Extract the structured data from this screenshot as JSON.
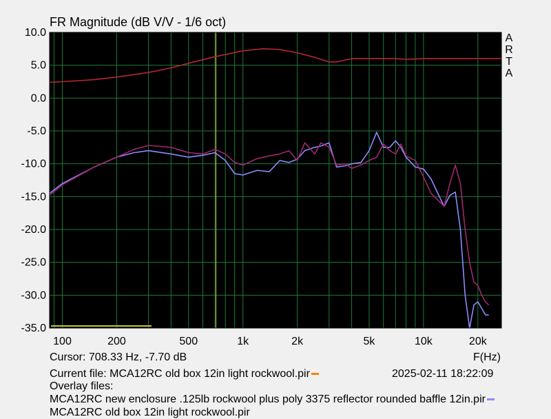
{
  "chart_data": {
    "type": "line",
    "title": "FR Magnitude (dB V/V - 1/6 oct)",
    "xlabel": "F(Hz)",
    "x_scale": "log",
    "xlim": [
      85,
      27000
    ],
    "ylim": [
      -35,
      10
    ],
    "grid": true,
    "x_ticks": [
      100,
      200,
      500,
      1000,
      2000,
      5000,
      10000,
      20000
    ],
    "x_tick_labels": [
      "100",
      "200",
      "500",
      "1k",
      "2k",
      "5k",
      "10k",
      "20k"
    ],
    "y_ticks": [
      10,
      5,
      0,
      -5,
      -10,
      -15,
      -20,
      -25,
      -30,
      -35
    ],
    "y_tick_labels": [
      "10.0",
      "5.0",
      "0.0",
      "-5.0",
      "-10.0",
      "-15.0",
      "-20.0",
      "-25.0",
      "-30.0",
      "-35.0"
    ],
    "cursor": {
      "x": 708.33,
      "y": -7.7
    },
    "series": [
      {
        "color": "#b42832",
        "x": [
          85,
          100,
          150,
          200,
          300,
          400,
          500,
          700,
          1000,
          1300,
          1600,
          2000,
          2500,
          3000,
          3300,
          4000,
          5000,
          7000,
          8000,
          10000,
          15000,
          20000,
          27000
        ],
        "y": [
          2.4,
          2.5,
          2.8,
          3.2,
          3.9,
          4.6,
          5.3,
          6.3,
          7.2,
          7.5,
          7.4,
          6.9,
          6.2,
          5.5,
          5.5,
          6.0,
          6.0,
          6.0,
          5.9,
          6.0,
          6.0,
          6.0,
          6.0
        ]
      },
      {
        "color": "#8c8cff",
        "x": [
          85,
          100,
          150,
          200,
          250,
          300,
          400,
          500,
          600,
          700,
          800,
          900,
          1000,
          1200,
          1400,
          1600,
          1800,
          2000,
          2200,
          2500,
          2700,
          3000,
          3300,
          3700,
          4000,
          4500,
          5000,
          5500,
          6000,
          6500,
          7000,
          7500,
          8000,
          9000,
          10000,
          11000,
          12000,
          13000,
          14000,
          15000,
          16000,
          17000,
          18000,
          19000,
          20000,
          21000,
          22000,
          23000
        ],
        "y": [
          -14.5,
          -13.0,
          -10.5,
          -9.0,
          -8.3,
          -8.0,
          -8.5,
          -9.0,
          -8.7,
          -8.3,
          -9.5,
          -11.5,
          -11.7,
          -11.0,
          -11.2,
          -9.5,
          -9.8,
          -9.3,
          -8.0,
          -7.5,
          -7.3,
          -6.8,
          -10.5,
          -10.3,
          -10.0,
          -9.8,
          -8.0,
          -5.2,
          -7.5,
          -7.5,
          -6.5,
          -7.5,
          -9.0,
          -10.5,
          -10.8,
          -12.3,
          -14.5,
          -16.5,
          -14.8,
          -14.3,
          -20.0,
          -30.0,
          -35.5,
          -31.5,
          -31.0,
          -32.0,
          -33.0,
          -33.0
        ]
      },
      {
        "color": "#a0286e",
        "x": [
          85,
          100,
          150,
          200,
          250,
          300,
          400,
          500,
          600,
          700,
          800,
          900,
          1000,
          1200,
          1400,
          1600,
          1800,
          2000,
          2200,
          2500,
          2700,
          3000,
          3300,
          3700,
          4000,
          4500,
          5000,
          5500,
          6000,
          6500,
          7000,
          7500,
          8000,
          9000,
          10000,
          11000,
          12000,
          13000,
          14000,
          15000,
          16000,
          17000,
          18000,
          19000,
          20000,
          21000,
          22000,
          23000
        ],
        "y": [
          -14.8,
          -13.2,
          -10.5,
          -9.0,
          -7.8,
          -7.2,
          -7.5,
          -8.3,
          -8.5,
          -7.8,
          -8.5,
          -9.8,
          -10.2,
          -9.2,
          -8.8,
          -8.5,
          -8.0,
          -9.5,
          -6.8,
          -8.5,
          -6.8,
          -7.5,
          -10.2,
          -10.0,
          -10.7,
          -10.2,
          -9.5,
          -9.0,
          -7.0,
          -8.0,
          -8.5,
          -7.0,
          -8.8,
          -9.5,
          -12.0,
          -14.5,
          -15.5,
          -16.5,
          -13.0,
          -10.2,
          -13.0,
          -20.0,
          -25.0,
          -28.0,
          -28.5,
          -30.0,
          -31.0,
          -31.5
        ]
      }
    ]
  },
  "labels": {
    "title": "FR Magnitude (dB V/V - 1/6 oct)",
    "arta": "A\nR\nT\nA",
    "xunit": "F(Hz)",
    "cursor": "Cursor: 708.33 Hz, -7.70 dB",
    "current_file": "Current file: MCA12RC old box 12in light rockwool.pir",
    "current_color": "#ff8000",
    "timestamp": "2025-02-11   18:22:09",
    "overlay_header": "Overlay files:",
    "overlay1": "MCA12RC new enclosure .125lb rockwool plus poly 3375 reflector rounded baffle 12in.pir",
    "overlay1_color": "#8c8cff",
    "overlay2": "MCA12RC old box 12in light rockwool.pir"
  }
}
